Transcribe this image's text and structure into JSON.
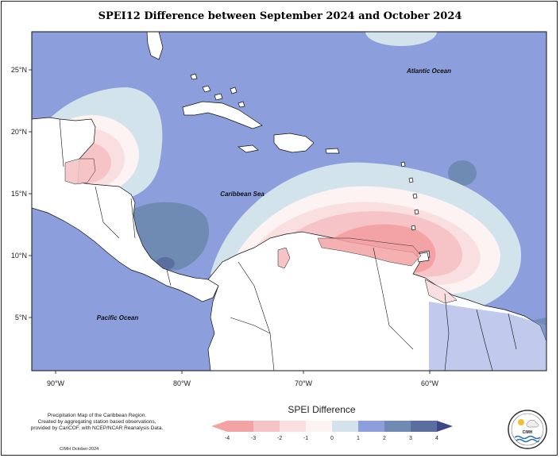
{
  "title": "SPEI12 Difference between September 2024 and October 2024",
  "map": {
    "lat_ticks": [
      "25°N",
      "20°N",
      "15°N",
      "10°N",
      "5°N"
    ],
    "lon_ticks": [
      "90°W",
      "80°W",
      "70°W",
      "60°W"
    ],
    "ocean_labels": {
      "atlantic": "Atlantic Ocean",
      "caribbean": "Caribbean Sea",
      "pacific": "Pacific Ocean"
    }
  },
  "legend": {
    "title": "SPEI Difference",
    "ticks": [
      "-4",
      "-3",
      "-2",
      "-1",
      "0",
      "1",
      "2",
      "3",
      "4"
    ],
    "colors": [
      "#f4a3a5",
      "#f6c4c6",
      "#fadfe0",
      "#fdf3f3",
      "#d3e3ec",
      "#8c9fdc",
      "#6f8ab3",
      "#5a6fa0",
      "#3c4788"
    ]
  },
  "footer": {
    "description_lines": [
      "Precipitation Map of the Caribbean Region.",
      "Created by aggregating station based observations,",
      "provided by CariCOF, with NCEP/NCAR Reanalysis Data."
    ],
    "credit": "CIMH October-2024",
    "logo_text": "CIMH"
  }
}
